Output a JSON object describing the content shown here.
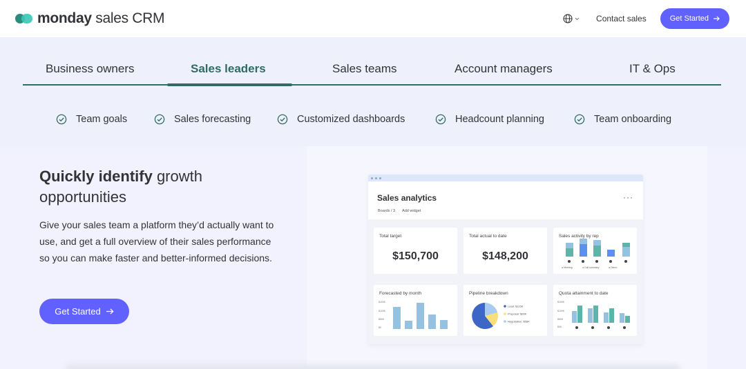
{
  "brand": {
    "name_bold": "monday",
    "name_rest": " sales CRM"
  },
  "nav": {
    "contact_label": "Contact sales",
    "cta_label": "Get Started"
  },
  "tabs": [
    {
      "label": "Business owners"
    },
    {
      "label": "Sales leaders",
      "active": true
    },
    {
      "label": "Sales teams"
    },
    {
      "label": "Account managers"
    },
    {
      "label": "IT & Ops"
    }
  ],
  "features": [
    "Team goals",
    "Sales forecasting",
    "Customized dashboards",
    "Headcount planning",
    "Team onboarding"
  ],
  "hero": {
    "title_bold": "Quickly identify",
    "title_rest": " growth opportunities",
    "description": "Give your sales team a platform they’d actually want to use, and get a full overview of their sales performance so you can make faster and better-informed decisions.",
    "cta_label": "Get Started"
  },
  "dashboard": {
    "title": "Sales analytics",
    "boards_label": "Boards / 3",
    "add_widget_label": "Add widget",
    "more_label": "···",
    "total_target_label": "Total target",
    "total_target_value": "$150,700",
    "total_actual_label": "Total actual to date",
    "total_actual_value": "$148,200",
    "activity_label": "Sales activity by rep",
    "activity_legend": [
      "Meeting",
      "Call summary",
      "Demo"
    ],
    "forecast_label": "Forecasted by month",
    "forecast_ticks": [
      "$150K",
      "$100K",
      "$50K",
      "$0"
    ],
    "pipeline_label": "Pipeline breakdown",
    "pipeline_legend": [
      "Lead: $115K",
      "Proposal: $90K",
      "Negotiation: $56K"
    ],
    "quota_label": "Quota attainment to date",
    "quota_ticks": [
      "$150K",
      "$100K",
      "$50K",
      "$0K"
    ]
  },
  "colors": {
    "accent": "#6161ff",
    "brand_green": "#2f6c63",
    "chart_blue": "#94c2e0",
    "chart_teal": "#5bb5a9"
  }
}
